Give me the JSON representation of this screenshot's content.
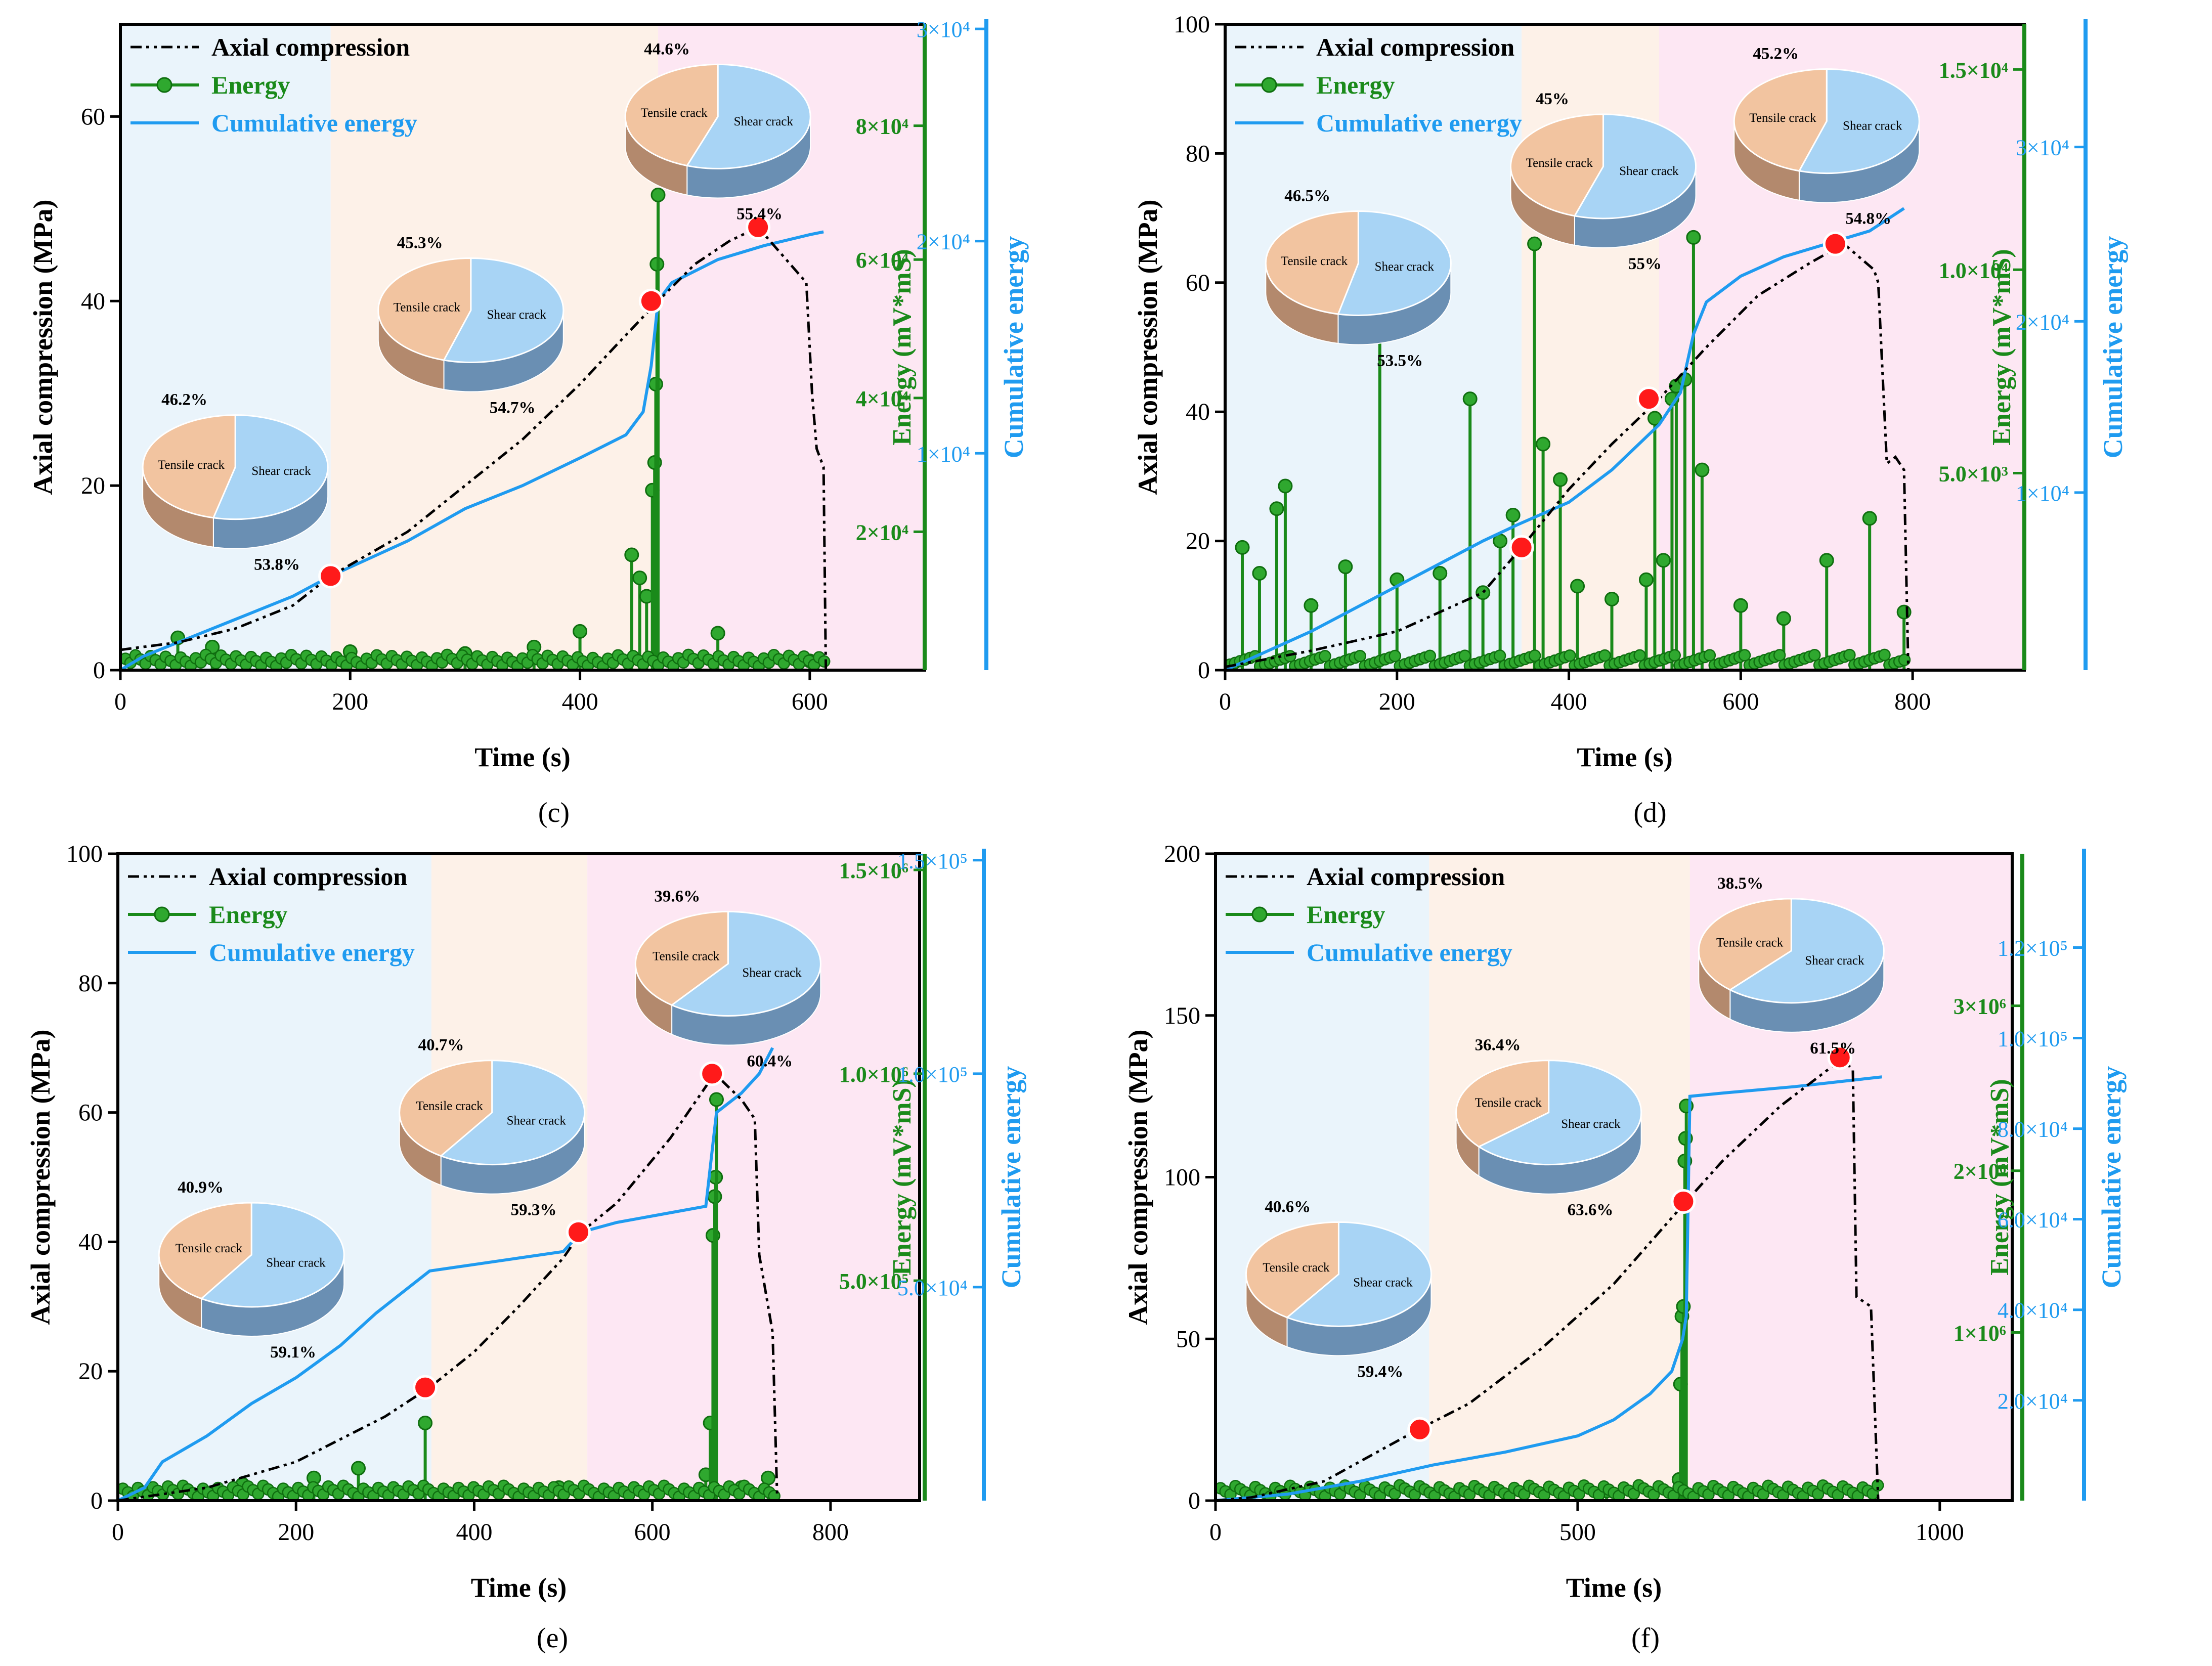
{
  "colors": {
    "axial": "#000000",
    "energy": "#1a8a1a",
    "cumulative": "#1f9bf0",
    "marker": "#ff1a1a",
    "stage1": "#eaf4fb",
    "stage2": "#fdf1e8",
    "stage3": "#fde7f3",
    "tensile": "#f2c4a0",
    "shear": "#a8d4f5"
  },
  "legend": {
    "axial": "Axial compression",
    "energy": "Energy",
    "cumulative": "Cumulative energy"
  },
  "pie_labels": {
    "tensile": "Tensile crack",
    "shear": "Shear crack"
  },
  "chart_data": [
    {
      "type": "line",
      "panel_label": "(c)",
      "xlabel": "Time (s)",
      "ylabel": "Axial compression (MPa)",
      "y2label": "Energy (mV*mS)",
      "y3label": "Cumulative energy",
      "xlim": [
        0,
        700
      ],
      "ylim": [
        0,
        70
      ],
      "xticks": [
        0,
        200,
        400,
        600
      ],
      "yticks": [
        0,
        20,
        40,
        60
      ],
      "energy_ticks": [
        {
          "label": "2×10⁴",
          "y": 15
        },
        {
          "label": "4×10⁴",
          "y": 29.5
        },
        {
          "label": "6×10⁴",
          "y": 44.5
        },
        {
          "label": "8×10⁴",
          "y": 59
        }
      ],
      "cum_ticks": [
        {
          "label": "1×10⁴",
          "y": 23.5
        },
        {
          "label": "2×10⁴",
          "y": 46.5
        },
        {
          "label": "3×10⁴",
          "y": 69.5
        }
      ],
      "stage_bounds": [
        183,
        468,
        700
      ],
      "axial": [
        [
          0,
          2.2
        ],
        [
          50,
          3
        ],
        [
          100,
          4.5
        ],
        [
          150,
          7
        ],
        [
          183,
          10.2
        ],
        [
          250,
          15
        ],
        [
          300,
          20
        ],
        [
          350,
          25
        ],
        [
          400,
          31
        ],
        [
          430,
          35
        ],
        [
          468,
          40
        ],
        [
          500,
          44
        ],
        [
          530,
          46.5
        ],
        [
          555,
          48
        ],
        [
          590,
          43
        ],
        [
          597,
          42
        ],
        [
          602,
          30
        ],
        [
          606,
          24
        ],
        [
          612,
          22
        ],
        [
          614,
          0
        ]
      ],
      "cumulative": [
        [
          0,
          0
        ],
        [
          20,
          1.5
        ],
        [
          50,
          3
        ],
        [
          100,
          5.5
        ],
        [
          150,
          8
        ],
        [
          183,
          10.2
        ],
        [
          250,
          14
        ],
        [
          300,
          17.5
        ],
        [
          350,
          20
        ],
        [
          400,
          23
        ],
        [
          440,
          25.5
        ],
        [
          455,
          28
        ],
        [
          462,
          33
        ],
        [
          468,
          40
        ],
        [
          480,
          42
        ],
        [
          520,
          44.5
        ],
        [
          560,
          46
        ],
        [
          600,
          47.2
        ],
        [
          612,
          47.5
        ]
      ],
      "energy_spikes": [
        [
          50,
          3.5
        ],
        [
          80,
          2.5
        ],
        [
          200,
          2
        ],
        [
          300,
          1.8
        ],
        [
          360,
          2.5
        ],
        [
          400,
          4.2
        ],
        [
          445,
          12.5
        ],
        [
          452,
          10
        ],
        [
          458,
          8
        ],
        [
          463,
          19.5
        ],
        [
          465,
          22.5
        ],
        [
          466,
          31
        ],
        [
          467,
          44
        ],
        [
          468,
          51.5
        ],
        [
          520,
          4
        ],
        [
          600,
          1
        ]
      ],
      "markers": [
        [
          183,
          10.2
        ],
        [
          462,
          40
        ],
        [
          555,
          48
        ]
      ],
      "pies": [
        {
          "tensile_pct": 46.2,
          "shear_pct": 53.8,
          "tensile_label": "46.2%",
          "shear_label": "53.8%",
          "t": 100,
          "v": 22
        },
        {
          "tensile_pct": 45.3,
          "shear_pct": 54.7,
          "tensile_label": "45.3%",
          "shear_label": "54.7%",
          "t": 305,
          "v": 39
        },
        {
          "tensile_pct": 44.6,
          "shear_pct": 55.4,
          "tensile_label": "44.6%",
          "shear_label": "55.4%",
          "t": 520,
          "v": 60
        }
      ]
    },
    {
      "type": "line",
      "panel_label": "(d)",
      "xlabel": "Time (s)",
      "ylabel": "Axial compression (MPa)",
      "y2label": "Energy (mV*mS)",
      "y3label": "Cumulative energy",
      "xlim": [
        0,
        930
      ],
      "ylim": [
        0,
        100
      ],
      "xticks": [
        0,
        200,
        400,
        600,
        800
      ],
      "yticks": [
        0,
        20,
        40,
        60,
        80,
        100
      ],
      "energy_ticks": [
        {
          "label": "5.0×10³",
          "y": 30.5
        },
        {
          "label": "1.0×10⁴",
          "y": 62
        },
        {
          "label": "1.5×10⁴",
          "y": 93
        }
      ],
      "cum_ticks": [
        {
          "label": "1×10⁴",
          "y": 27.5
        },
        {
          "label": "2×10⁴",
          "y": 54
        },
        {
          "label": "3×10⁴",
          "y": 81
        }
      ],
      "stage_bounds": [
        345,
        505,
        930
      ],
      "axial": [
        [
          0,
          0.5
        ],
        [
          100,
          3
        ],
        [
          200,
          6
        ],
        [
          300,
          12
        ],
        [
          345,
          19
        ],
        [
          400,
          28
        ],
        [
          450,
          35
        ],
        [
          505,
          42
        ],
        [
          560,
          50
        ],
        [
          620,
          58
        ],
        [
          680,
          63
        ],
        [
          720,
          66
        ],
        [
          755,
          62
        ],
        [
          760,
          60
        ],
        [
          770,
          32
        ],
        [
          780,
          33
        ],
        [
          790,
          31
        ],
        [
          795,
          0
        ]
      ],
      "cumulative": [
        [
          0,
          0
        ],
        [
          50,
          3
        ],
        [
          100,
          6
        ],
        [
          150,
          9.5
        ],
        [
          200,
          13
        ],
        [
          250,
          16.5
        ],
        [
          300,
          20
        ],
        [
          340,
          22.5
        ],
        [
          400,
          26
        ],
        [
          450,
          31
        ],
        [
          505,
          38
        ],
        [
          530,
          43
        ],
        [
          545,
          52
        ],
        [
          560,
          57
        ],
        [
          600,
          61
        ],
        [
          650,
          64
        ],
        [
          700,
          66
        ],
        [
          750,
          68
        ],
        [
          790,
          71.5
        ]
      ],
      "energy_spikes": [
        [
          20,
          19
        ],
        [
          40,
          15
        ],
        [
          60,
          25
        ],
        [
          70,
          28.5
        ],
        [
          100,
          10
        ],
        [
          140,
          16
        ],
        [
          180,
          53
        ],
        [
          200,
          14
        ],
        [
          250,
          15
        ],
        [
          285,
          42
        ],
        [
          300,
          12
        ],
        [
          320,
          20
        ],
        [
          335,
          24
        ],
        [
          360,
          66
        ],
        [
          370,
          35
        ],
        [
          390,
          29.5
        ],
        [
          410,
          13
        ],
        [
          450,
          11
        ],
        [
          490,
          14
        ],
        [
          500,
          39
        ],
        [
          510,
          17
        ],
        [
          520,
          42
        ],
        [
          525,
          44
        ],
        [
          535,
          45
        ],
        [
          545,
          67
        ],
        [
          555,
          31
        ],
        [
          600,
          10
        ],
        [
          650,
          8
        ],
        [
          700,
          17
        ],
        [
          750,
          23.5
        ],
        [
          790,
          9
        ]
      ],
      "markers": [
        [
          345,
          19
        ],
        [
          493,
          42
        ],
        [
          710,
          66
        ]
      ],
      "pies": [
        {
          "tensile_pct": 46.5,
          "shear_pct": 53.5,
          "tensile_label": "46.5%",
          "shear_label": "53.5%",
          "t": 155,
          "v": 63
        },
        {
          "tensile_pct": 45.0,
          "shear_pct": 55.0,
          "tensile_label": "45%",
          "shear_label": "55%",
          "t": 440,
          "v": 78
        },
        {
          "tensile_pct": 45.2,
          "shear_pct": 54.8,
          "tensile_label": "45.2%",
          "shear_label": "54.8%",
          "t": 700,
          "v": 85
        }
      ]
    },
    {
      "type": "line",
      "panel_label": "(e)",
      "xlabel": "Time (s)",
      "ylabel": "Axial compression (MPa)",
      "y2label": "Energy (mV*mS)",
      "y3label": "Cumulative energy",
      "xlim": [
        0,
        900
      ],
      "ylim": [
        0,
        100
      ],
      "xticks": [
        0,
        200,
        400,
        600,
        800
      ],
      "yticks": [
        0,
        20,
        40,
        60,
        80,
        100
      ],
      "energy_ticks": [
        {
          "label": "5.0×10⁵",
          "y": 34
        },
        {
          "label": "1.0×10⁶",
          "y": 66
        },
        {
          "label": "1.5×10⁶",
          "y": 97.5
        }
      ],
      "cum_ticks": [
        {
          "label": "5.0×10⁴",
          "y": 33
        },
        {
          "label": "1.0×10⁵",
          "y": 66
        },
        {
          "label": "1.5×10⁵",
          "y": 99
        }
      ],
      "stage_bounds": [
        352,
        527,
        900
      ],
      "axial": [
        [
          0,
          0
        ],
        [
          100,
          2
        ],
        [
          200,
          6
        ],
        [
          300,
          13
        ],
        [
          350,
          17.5
        ],
        [
          400,
          23
        ],
        [
          450,
          30
        ],
        [
          500,
          37.5
        ],
        [
          520,
          41.5
        ],
        [
          560,
          46
        ],
        [
          620,
          56
        ],
        [
          660,
          64
        ],
        [
          670,
          66
        ],
        [
          700,
          62
        ],
        [
          715,
          59
        ],
        [
          720,
          38
        ],
        [
          735,
          26
        ],
        [
          740,
          1
        ]
      ],
      "cumulative": [
        [
          0,
          0
        ],
        [
          30,
          2
        ],
        [
          50,
          6
        ],
        [
          100,
          10
        ],
        [
          150,
          15
        ],
        [
          200,
          19
        ],
        [
          250,
          24
        ],
        [
          290,
          29
        ],
        [
          350,
          35.5
        ],
        [
          400,
          36.5
        ],
        [
          450,
          37.5
        ],
        [
          500,
          38.5
        ],
        [
          520,
          41.5
        ],
        [
          560,
          43
        ],
        [
          600,
          44
        ],
        [
          660,
          45.5
        ],
        [
          672,
          60
        ],
        [
          700,
          63
        ],
        [
          720,
          66
        ],
        [
          735,
          70
        ]
      ],
      "energy_spikes": [
        [
          140,
          2.5
        ],
        [
          220,
          3.5
        ],
        [
          270,
          5
        ],
        [
          345,
          12
        ],
        [
          495,
          2
        ],
        [
          660,
          4
        ],
        [
          665,
          12
        ],
        [
          668,
          41
        ],
        [
          670,
          47
        ],
        [
          671,
          50
        ],
        [
          672,
          62
        ],
        [
          700,
          2
        ],
        [
          730,
          3.5
        ]
      ],
      "markers": [
        [
          345,
          17.5
        ],
        [
          517,
          41.5
        ],
        [
          667,
          66
        ]
      ],
      "pies": [
        {
          "tensile_pct": 40.9,
          "shear_pct": 59.1,
          "tensile_label": "40.9%",
          "shear_label": "59.1%",
          "t": 150,
          "v": 38
        },
        {
          "tensile_pct": 40.7,
          "shear_pct": 59.3,
          "tensile_label": "40.7%",
          "shear_label": "59.3%",
          "t": 420,
          "v": 60
        },
        {
          "tensile_pct": 39.6,
          "shear_pct": 60.4,
          "tensile_label": "39.6%",
          "shear_label": "60.4%",
          "t": 685,
          "v": 83
        }
      ]
    },
    {
      "type": "line",
      "panel_label": "(f)",
      "xlabel": "Time (s)",
      "ylabel": "Axial compression (MPa)",
      "y2label": "Energy (mV*mS)",
      "y3label": "Cumulative energy",
      "xlim": [
        0,
        1100
      ],
      "ylim": [
        0,
        200
      ],
      "xticks": [
        0,
        500,
        1000
      ],
      "yticks": [
        0,
        50,
        100,
        150,
        200
      ],
      "energy_ticks": [
        {
          "label": "1×10⁶",
          "y": 52
        },
        {
          "label": "2×10⁶",
          "y": 102
        },
        {
          "label": "3×10⁶",
          "y": 153
        }
      ],
      "cum_ticks": [
        {
          "label": "2.0×10⁴",
          "y": 31
        },
        {
          "label": "4.0×10⁴",
          "y": 59
        },
        {
          "label": "6.0×10⁴",
          "y": 87
        },
        {
          "label": "8.0×10⁴",
          "y": 115
        },
        {
          "label": "1.0×10⁵",
          "y": 143
        },
        {
          "label": "1.2×10⁵",
          "y": 171
        }
      ],
      "stage_bounds": [
        295,
        655,
        1100
      ],
      "axial": [
        [
          0,
          0
        ],
        [
          50,
          1
        ],
        [
          150,
          6
        ],
        [
          280,
          22
        ],
        [
          350,
          30
        ],
        [
          450,
          47
        ],
        [
          550,
          67
        ],
        [
          640,
          90
        ],
        [
          700,
          105
        ],
        [
          780,
          122
        ],
        [
          850,
          134
        ],
        [
          865,
          137
        ],
        [
          880,
          133
        ],
        [
          885,
          63
        ],
        [
          905,
          60
        ],
        [
          915,
          0
        ]
      ],
      "cumulative": [
        [
          0,
          0
        ],
        [
          100,
          2
        ],
        [
          200,
          6
        ],
        [
          300,
          11
        ],
        [
          400,
          15
        ],
        [
          500,
          20
        ],
        [
          550,
          25
        ],
        [
          600,
          33
        ],
        [
          630,
          40
        ],
        [
          645,
          50
        ],
        [
          650,
          57
        ],
        [
          655,
          125
        ],
        [
          700,
          126
        ],
        [
          800,
          128
        ],
        [
          920,
          131
        ]
      ],
      "energy_spikes": [
        [
          540,
          3
        ],
        [
          640,
          6.5
        ],
        [
          642,
          36
        ],
        [
          644,
          57
        ],
        [
          646,
          60
        ],
        [
          648,
          105
        ],
        [
          649,
          112
        ],
        [
          650,
          122
        ]
      ],
      "markers": [
        [
          282,
          22
        ],
        [
          646,
          92.5
        ],
        [
          862,
          137
        ]
      ],
      "pies": [
        {
          "tensile_pct": 40.6,
          "shear_pct": 59.4,
          "tensile_label": "40.6%",
          "shear_label": "59.4%",
          "t": 170,
          "v": 70
        },
        {
          "tensile_pct": 36.4,
          "shear_pct": 63.6,
          "tensile_label": "36.4%",
          "shear_label": "63.6%",
          "t": 460,
          "v": 120
        },
        {
          "tensile_pct": 38.5,
          "shear_pct": 61.5,
          "tensile_label": "38.5%",
          "shear_label": "61.5%",
          "t": 795,
          "v": 170
        }
      ]
    }
  ]
}
